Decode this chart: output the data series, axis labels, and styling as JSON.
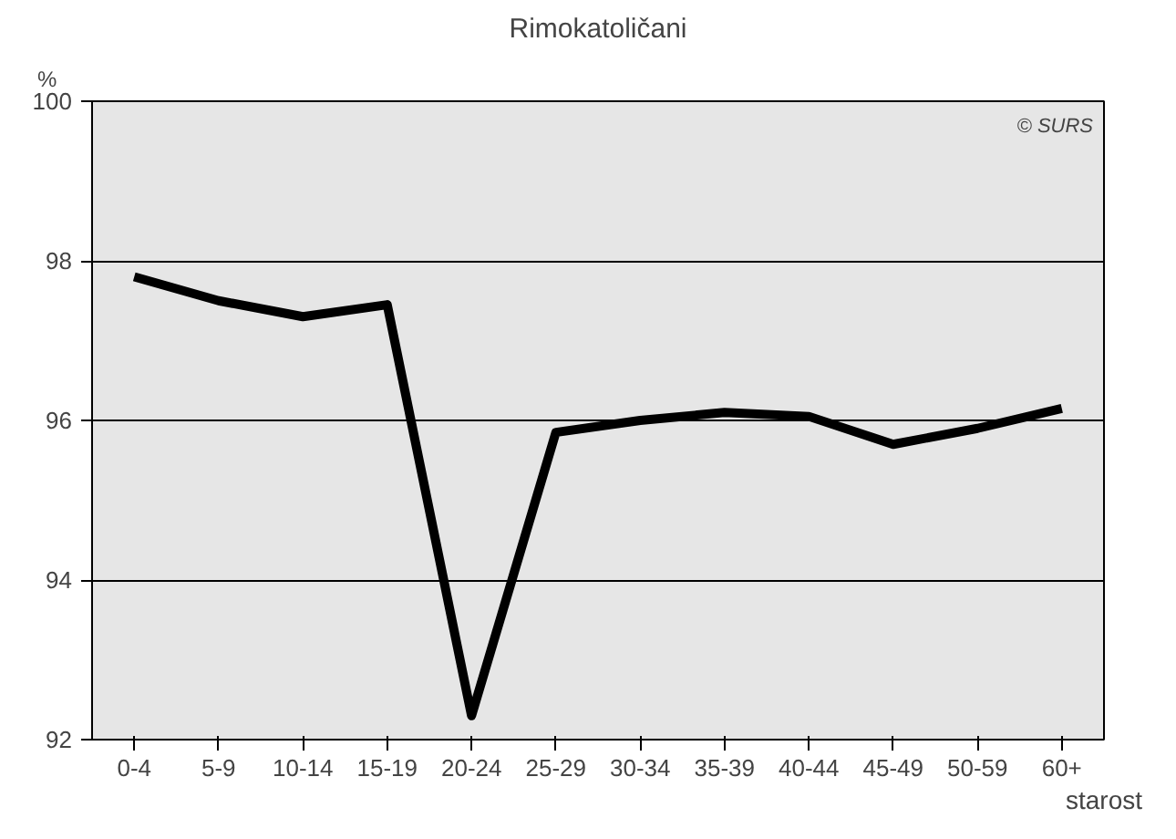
{
  "chart_data": {
    "type": "line",
    "title": "Rimokatoličani",
    "ylabel": "%",
    "xlabel": "starost",
    "categories": [
      "0-4",
      "5-9",
      "10-14",
      "15-19",
      "20-24",
      "25-29",
      "30-34",
      "35-39",
      "40-44",
      "45-49",
      "50-59",
      "60+"
    ],
    "series": [
      {
        "color": "#000000",
        "values": [
          97.8,
          97.5,
          97.3,
          97.45,
          92.3,
          95.85,
          96.0,
          96.1,
          96.05,
          95.7,
          95.9,
          96.15
        ]
      }
    ],
    "ylim": [
      92,
      100
    ],
    "yticks": [
      92,
      94,
      96,
      98,
      100
    ],
    "grid": "y",
    "line_style": "solid",
    "marker": "none",
    "annotations": [
      "© SURS"
    ]
  }
}
